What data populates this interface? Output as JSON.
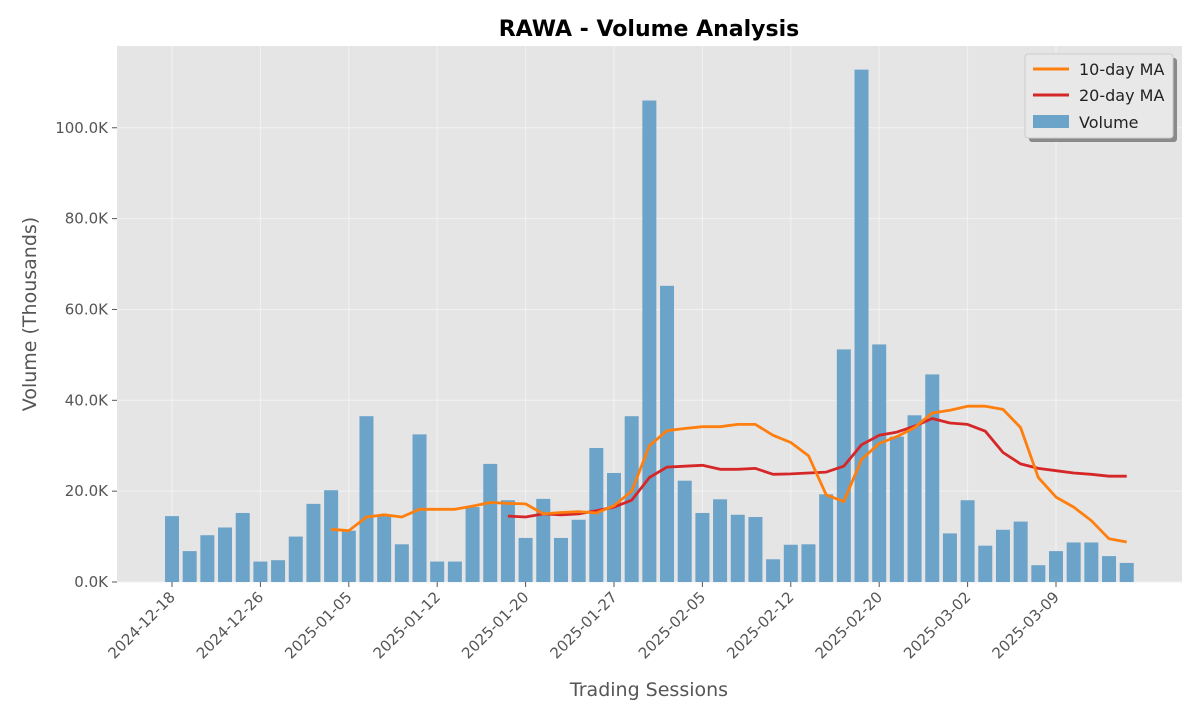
{
  "chart_data": {
    "type": "bar",
    "title": "RAWA - Volume Analysis",
    "xlabel": "Trading Sessions",
    "ylabel": "Volume (Thousands)",
    "ylim": [
      0,
      118
    ],
    "y_ticks": [
      0,
      20,
      40,
      60,
      80,
      100
    ],
    "y_tick_labels": [
      "0.0K",
      "20.0K",
      "40.0K",
      "60.0K",
      "80.0K",
      "100.0K"
    ],
    "x_tick_labels": [
      "2024-12-18",
      "2024-12-26",
      "2025-01-05",
      "2025-01-12",
      "2025-01-20",
      "2025-01-27",
      "2025-02-05",
      "2025-02-12",
      "2025-02-20",
      "2025-03-02",
      "2025-03-09"
    ],
    "x_tick_sessions": [
      0,
      5,
      10,
      15,
      20,
      25,
      30,
      35,
      40,
      45,
      50
    ],
    "grid": true,
    "legend_position": "top-right",
    "colors": {
      "volume": "#6ca3c9",
      "ma10": "#ff7f0e",
      "ma20": "#d62728",
      "plot_bg": "#e5e5e5",
      "grid": "#f2f2f2"
    },
    "series": [
      {
        "name": "Volume",
        "kind": "bar",
        "values": [
          14.5,
          6.8,
          10.3,
          12.0,
          15.2,
          4.5,
          4.8,
          10.0,
          17.2,
          20.2,
          11.3,
          36.5,
          14.5,
          8.3,
          32.5,
          4.5,
          4.5,
          16.5,
          26.0,
          18.0,
          9.7,
          18.3,
          9.7,
          13.7,
          29.5,
          24.0,
          36.5,
          106.0,
          65.2,
          22.3,
          15.2,
          18.2,
          14.8,
          14.3,
          5.0,
          8.2,
          8.3,
          19.3,
          51.2,
          112.8,
          52.3,
          32.0,
          36.7,
          45.7,
          10.7,
          18.0,
          8.0,
          11.5,
          13.3,
          3.7,
          6.8,
          8.7,
          8.7,
          5.7,
          4.2
        ]
      },
      {
        "name": "10-day MA",
        "kind": "line",
        "values": [
          null,
          null,
          null,
          null,
          null,
          null,
          null,
          null,
          null,
          11.6,
          11.3,
          14.3,
          14.8,
          14.3,
          16.0,
          16.0,
          16.0,
          16.7,
          17.5,
          17.3,
          17.2,
          15.0,
          15.3,
          15.5,
          15.2,
          16.8,
          20.0,
          30.0,
          33.3,
          33.8,
          34.2,
          34.2,
          34.7,
          34.7,
          32.3,
          30.7,
          27.8,
          19.2,
          17.7,
          27.0,
          30.5,
          32.0,
          34.0,
          37.2,
          37.8,
          38.7,
          38.7,
          38.0,
          34.0,
          23.0,
          18.7,
          16.5,
          13.5,
          9.5,
          8.8
        ]
      },
      {
        "name": "20-day MA",
        "kind": "line",
        "values": [
          null,
          null,
          null,
          null,
          null,
          null,
          null,
          null,
          null,
          null,
          null,
          null,
          null,
          null,
          null,
          null,
          null,
          null,
          null,
          14.5,
          14.3,
          15.0,
          14.8,
          15.0,
          15.7,
          16.5,
          18.0,
          23.0,
          25.3,
          25.5,
          25.7,
          24.8,
          24.8,
          25.0,
          23.7,
          23.8,
          24.0,
          24.2,
          25.5,
          30.2,
          32.3,
          33.0,
          34.3,
          36.0,
          35.0,
          34.7,
          33.2,
          28.5,
          26.0,
          25.0,
          24.5,
          24.0,
          23.7,
          23.3,
          23.3
        ]
      }
    ]
  }
}
